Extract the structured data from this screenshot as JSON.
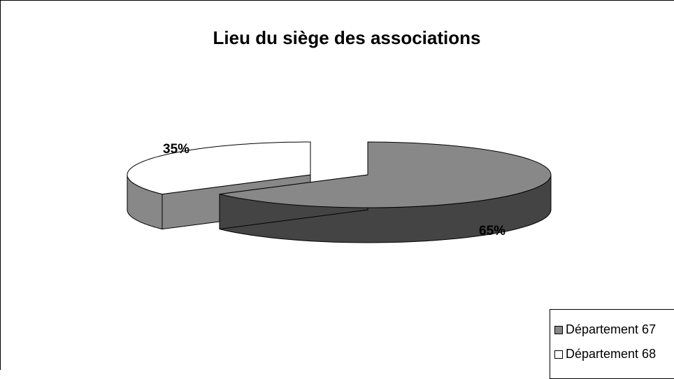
{
  "chart_data": {
    "type": "pie",
    "title": "Lieu du siège des associations",
    "categories": [
      "Département 67",
      "Département 68"
    ],
    "values": [
      65,
      35
    ],
    "data_labels": [
      "65%",
      "35%"
    ],
    "colors": {
      "Département 67": {
        "top": "#888888",
        "side": "#444444"
      },
      "Département 68": {
        "top": "#ffffff",
        "side": "#888888"
      }
    },
    "style": "3d-exploded-pie",
    "legend_position": "bottom-right"
  }
}
